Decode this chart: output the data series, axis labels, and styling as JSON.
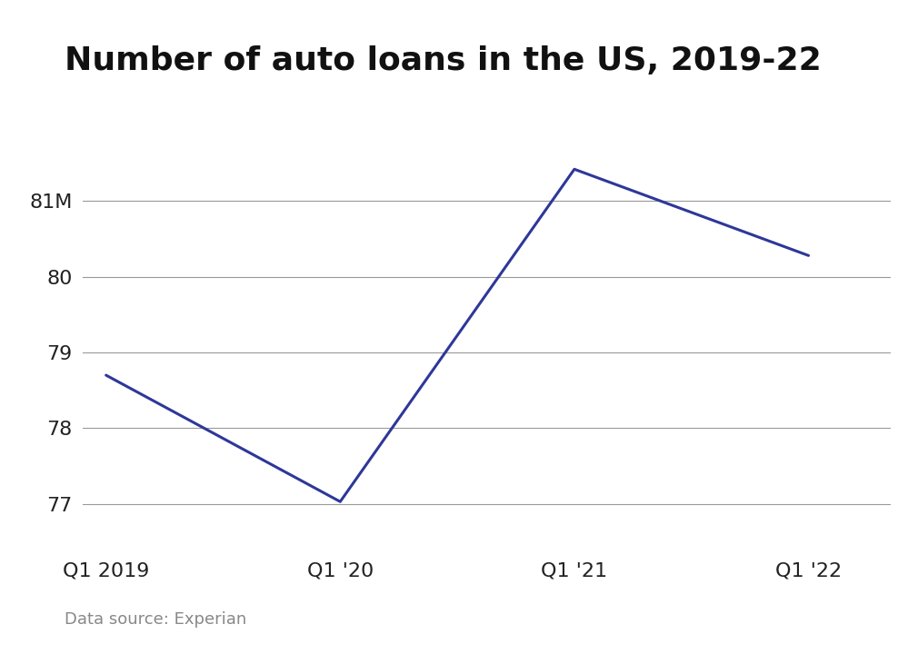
{
  "title": "Number of auto loans in the US, 2019-22",
  "x_labels": [
    "Q1 2019",
    "Q1 '20",
    "Q1 '21",
    "Q1 '22"
  ],
  "x_values": [
    0,
    1,
    2,
    3
  ],
  "y_values": [
    78.7,
    77.03,
    81.42,
    80.28
  ],
  "yticks": [
    77,
    78,
    79,
    80,
    81
  ],
  "ytick_labels": [
    "77",
    "78",
    "79",
    "80",
    "81M"
  ],
  "ylim": [
    76.4,
    82.1
  ],
  "xlim": [
    -0.1,
    3.35
  ],
  "line_color": "#2e3799",
  "line_width": 2.2,
  "background_color": "#ffffff",
  "caption": "Data source: Experian",
  "title_fontsize": 26,
  "caption_fontsize": 13,
  "tick_fontsize": 16,
  "grid_color": "#999999",
  "grid_linewidth": 0.8
}
